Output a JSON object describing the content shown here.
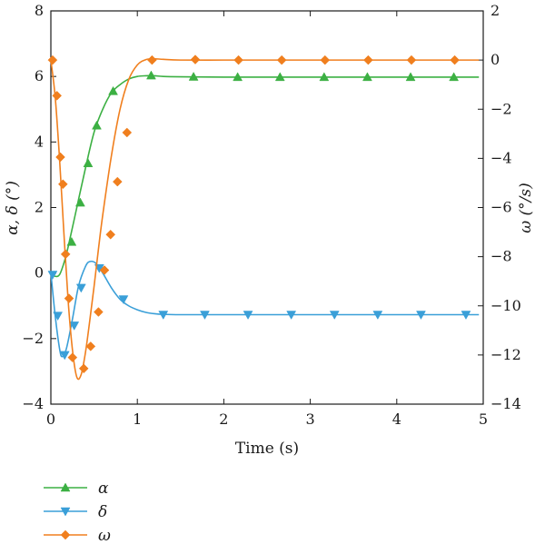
{
  "chart_data": {
    "type": "line",
    "xlabel": "Time (s)",
    "ylabel_left": "α, δ (°)",
    "ylabel_right": "ω (°/s)",
    "xlim": [
      0,
      5
    ],
    "ylim_left": [
      -4,
      8
    ],
    "ylim_right": [
      -14,
      2
    ],
    "xticks": [
      "0",
      "1",
      "2",
      "3",
      "4",
      "5"
    ],
    "yticks_left": [
      "−4",
      "−2",
      "0",
      "2",
      "4",
      "6",
      "8"
    ],
    "yticks_right": [
      "−14",
      "−12",
      "−10",
      "−8",
      "−6",
      "−4",
      "−2",
      "0",
      "2"
    ],
    "grid": false,
    "legend_position": "bottom-left",
    "series": [
      {
        "name": "α",
        "axis": "left",
        "color": "#3cb043",
        "marker": "triangle-up",
        "x": [
          0.0,
          0.05,
          0.1,
          0.15,
          0.2,
          0.3,
          0.4,
          0.5,
          0.6,
          0.7,
          0.8,
          0.9,
          1.0,
          1.1,
          1.2,
          1.3,
          1.5,
          2.0,
          2.5,
          3.0,
          3.5,
          4.0,
          4.5,
          4.95
        ],
        "y": [
          0.0,
          -0.1,
          -0.05,
          0.3,
          0.8,
          2.0,
          3.2,
          4.3,
          5.0,
          5.5,
          5.75,
          5.92,
          6.0,
          6.02,
          6.02,
          6.0,
          5.99,
          5.98,
          5.98,
          5.98,
          5.98,
          5.98,
          5.98,
          5.98
        ],
        "markers_x": [
          0.24,
          0.34,
          0.43,
          0.53,
          0.72,
          1.16,
          1.65,
          2.16,
          2.65,
          3.16,
          3.66,
          4.16,
          4.66
        ],
        "markers_y": [
          0.95,
          2.15,
          3.35,
          4.5,
          5.55,
          6.03,
          5.99,
          5.98,
          5.98,
          5.98,
          5.98,
          5.98,
          5.98
        ]
      },
      {
        "name": "δ",
        "axis": "left",
        "color": "#3a9fd8",
        "marker": "triangle-down",
        "x": [
          0.0,
          0.05,
          0.1,
          0.13,
          0.18,
          0.25,
          0.32,
          0.4,
          0.45,
          0.52,
          0.6,
          0.7,
          0.8,
          0.9,
          1.0,
          1.1,
          1.2,
          1.3,
          1.5,
          2.0,
          2.5,
          3.0,
          3.5,
          4.0,
          4.5,
          4.95
        ],
        "y": [
          0.0,
          -1.3,
          -2.3,
          -2.55,
          -2.3,
          -1.4,
          -0.4,
          0.2,
          0.35,
          0.3,
          0.0,
          -0.45,
          -0.8,
          -1.0,
          -1.12,
          -1.2,
          -1.24,
          -1.26,
          -1.27,
          -1.27,
          -1.27,
          -1.27,
          -1.27,
          -1.27,
          -1.27,
          -1.27
        ],
        "markers_x": [
          0.02,
          0.08,
          0.16,
          0.27,
          0.35,
          0.56,
          0.84,
          1.3,
          1.78,
          2.28,
          2.78,
          3.28,
          3.78,
          4.28,
          4.8
        ],
        "markers_y": [
          -0.05,
          -1.3,
          -2.5,
          -1.6,
          -0.45,
          0.15,
          -0.8,
          -1.27,
          -1.27,
          -1.27,
          -1.27,
          -1.27,
          -1.27,
          -1.27,
          -1.27
        ]
      },
      {
        "name": "ω",
        "axis": "right",
        "color": "#f07f1e",
        "marker": "diamond",
        "x": [
          0.0,
          0.05,
          0.1,
          0.15,
          0.2,
          0.25,
          0.3,
          0.35,
          0.4,
          0.45,
          0.5,
          0.55,
          0.6,
          0.7,
          0.8,
          0.9,
          1.0,
          1.1,
          1.2,
          1.3,
          1.5,
          2.0,
          2.5,
          3.0,
          3.5,
          4.0,
          4.5,
          4.95
        ],
        "y": [
          0.0,
          -1.5,
          -4.0,
          -7.0,
          -9.8,
          -11.8,
          -12.9,
          -12.8,
          -11.9,
          -10.6,
          -9.2,
          -7.7,
          -6.3,
          -3.9,
          -2.0,
          -0.8,
          -0.2,
          0.02,
          0.05,
          0.03,
          0.0,
          0.0,
          0.0,
          0.0,
          0.0,
          0.0,
          0.0,
          0.0
        ],
        "markers_x": [
          0.02,
          0.07,
          0.11,
          0.14,
          0.17,
          0.21,
          0.25,
          0.38,
          0.46,
          0.55,
          0.62,
          0.69,
          0.77,
          0.88,
          1.17,
          1.67,
          2.17,
          2.67,
          3.17,
          3.67,
          4.17,
          4.67
        ],
        "markers_y": [
          0.0,
          -1.45,
          -3.95,
          -5.05,
          -7.9,
          -9.7,
          -12.1,
          -12.55,
          -11.65,
          -10.25,
          -8.55,
          -7.1,
          -4.95,
          -2.95,
          0.0,
          0.02,
          0.0,
          0.0,
          0.0,
          0.0,
          0.0,
          0.0
        ]
      }
    ]
  }
}
